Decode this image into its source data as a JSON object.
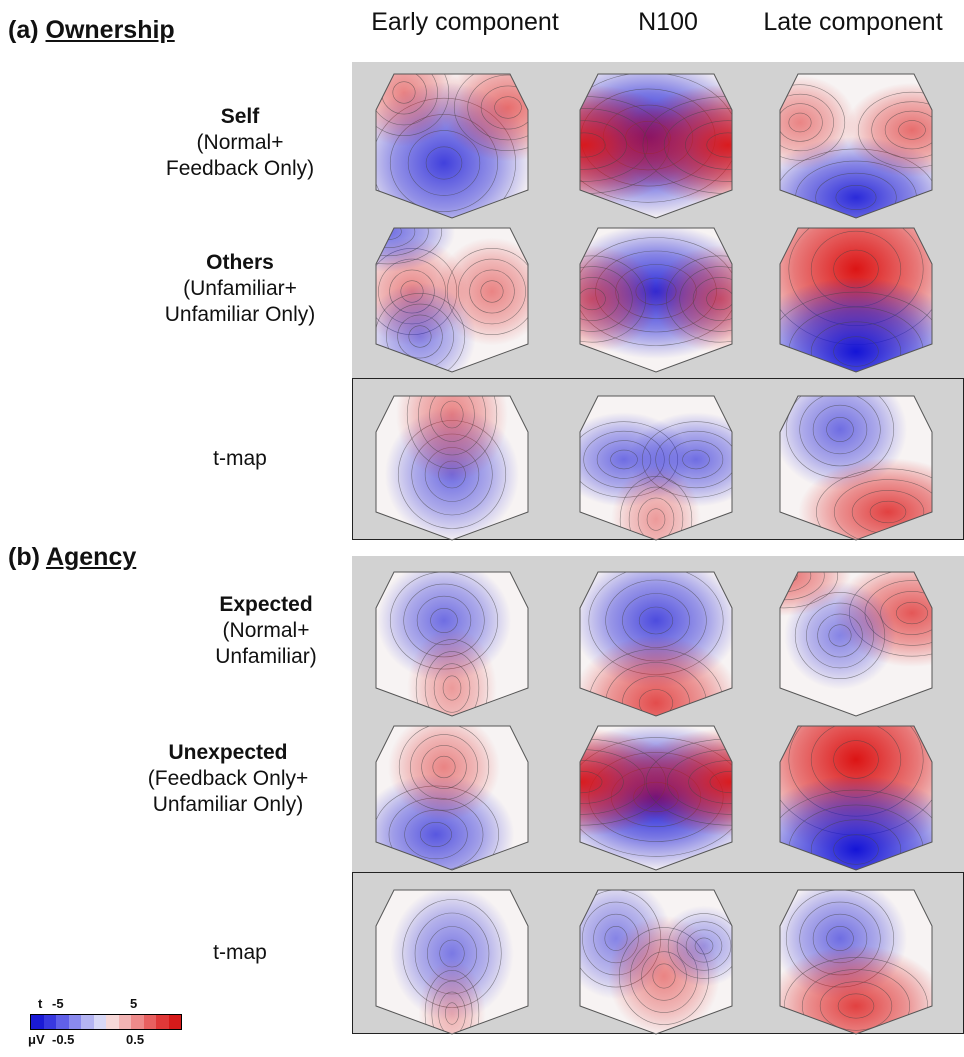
{
  "columns": [
    "Early component",
    "N100",
    "Late component"
  ],
  "sections": [
    {
      "prefix": "(a)",
      "title": "Ownership",
      "rows": [
        {
          "name": "Self",
          "sub": [
            "(Normal+",
            "Feedback Only)"
          ],
          "maps": [
            [
              [
                "b",
                0.45,
                0.62,
                0.8,
                0.6
              ],
              [
                "r",
                0.85,
                0.25,
                0.6,
                0.4
              ],
              [
                "r",
                0.2,
                0.15,
                0.5,
                0.4
              ]
            ],
            [
              [
                "b",
                0.45,
                0.45,
                1.0,
                0.6
              ],
              [
                "r",
                0.05,
                0.5,
                0.95,
                0.45
              ],
              [
                "r",
                0.95,
                0.5,
                0.95,
                0.45
              ]
            ],
            [
              [
                "b",
                0.5,
                0.85,
                0.9,
                0.45
              ],
              [
                "r",
                0.85,
                0.4,
                0.6,
                0.35
              ],
              [
                "r",
                0.15,
                0.35,
                0.5,
                0.35
              ]
            ]
          ]
        },
        {
          "name": "Others",
          "sub": [
            "(Unfamiliar+",
            "Unfamiliar Only)"
          ],
          "maps": [
            [
              [
                "r",
                0.25,
                0.45,
                0.5,
                0.4
              ],
              [
                "r",
                0.75,
                0.45,
                0.5,
                0.4
              ],
              [
                "b",
                0.3,
                0.75,
                0.5,
                0.4
              ],
              [
                "b",
                0.1,
                0.05,
                0.6,
                0.3
              ]
            ],
            [
              [
                "b",
                0.5,
                0.45,
                0.9,
                0.5
              ],
              [
                "r",
                0.1,
                0.5,
                0.6,
                0.4
              ],
              [
                "r",
                0.9,
                0.5,
                0.6,
                0.4
              ]
            ],
            [
              [
                "r",
                0.5,
                0.3,
                1.0,
                0.7
              ],
              [
                "b",
                0.5,
                0.85,
                1.0,
                0.55
              ]
            ]
          ]
        }
      ],
      "tmap": {
        "label": "t-map",
        "maps": [
          [
            [
              "b",
              0.5,
              0.55,
              0.6,
              0.5
            ],
            [
              "r",
              0.5,
              0.15,
              0.5,
              0.5
            ]
          ],
          [
            [
              "b",
              0.3,
              0.45,
              0.6,
              0.35
            ],
            [
              "b",
              0.75,
              0.45,
              0.6,
              0.35
            ],
            [
              "r",
              0.5,
              0.85,
              0.4,
              0.4
            ]
          ],
          [
            [
              "b",
              0.4,
              0.25,
              0.6,
              0.45
            ],
            [
              "r",
              0.7,
              0.8,
              0.8,
              0.4
            ]
          ]
        ]
      }
    },
    {
      "prefix": "(b)",
      "title": "Agency",
      "rows": [
        {
          "name": "Expected",
          "sub": [
            "(Normal+",
            "Unfamiliar)"
          ],
          "maps": [
            [
              [
                "b",
                0.45,
                0.35,
                0.6,
                0.45
              ],
              [
                "r",
                0.5,
                0.8,
                0.4,
                0.45
              ]
            ],
            [
              [
                "b",
                0.5,
                0.35,
                0.75,
                0.5
              ],
              [
                "r",
                0.5,
                0.9,
                0.75,
                0.5
              ]
            ],
            [
              [
                "r",
                0.85,
                0.3,
                0.7,
                0.4
              ],
              [
                "b",
                0.4,
                0.45,
                0.5,
                0.4
              ],
              [
                "r",
                0.05,
                0.05,
                0.6,
                0.3
              ]
            ]
          ]
        },
        {
          "name": "Unexpected",
          "sub": [
            "(Feedback Only+",
            "Unfamiliar Only)"
          ],
          "maps": [
            [
              [
                "b",
                0.4,
                0.75,
                0.7,
                0.45
              ],
              [
                "r",
                0.45,
                0.3,
                0.5,
                0.4
              ]
            ],
            [
              [
                "b",
                0.5,
                0.5,
                1.0,
                0.55
              ],
              [
                "r",
                0.03,
                0.4,
                0.95,
                0.4
              ],
              [
                "r",
                0.97,
                0.4,
                0.95,
                0.4
              ]
            ],
            [
              [
                "r",
                0.5,
                0.25,
                1.0,
                0.7
              ],
              [
                "b",
                0.5,
                0.85,
                1.0,
                0.55
              ]
            ]
          ]
        }
      ],
      "tmap": {
        "label": "t-map",
        "maps": [
          [
            [
              "b",
              0.5,
              0.45,
              0.55,
              0.5
            ],
            [
              "r",
              0.5,
              0.85,
              0.3,
              0.4
            ]
          ],
          [
            [
              "b",
              0.25,
              0.35,
              0.5,
              0.45
            ],
            [
              "r",
              0.55,
              0.6,
              0.5,
              0.45
            ],
            [
              "b",
              0.8,
              0.4,
              0.4,
              0.3
            ]
          ],
          [
            [
              "b",
              0.4,
              0.35,
              0.6,
              0.45
            ],
            [
              "r",
              0.5,
              0.8,
              0.8,
              0.45
            ]
          ]
        ]
      }
    }
  ],
  "legend": {
    "t_label": "t",
    "t_neg": "-5",
    "t_pos": "5",
    "uv_label": "μV",
    "uv_neg": "-0.5",
    "uv_pos": "0.5",
    "colors": [
      "#1a1ad6",
      "#3838e0",
      "#6060e8",
      "#8a8aee",
      "#b4b4f2",
      "#d8d8f6",
      "#f6d8d8",
      "#f2b4b4",
      "#ee8a8a",
      "#e86060",
      "#e03838",
      "#d61a1a"
    ]
  }
}
